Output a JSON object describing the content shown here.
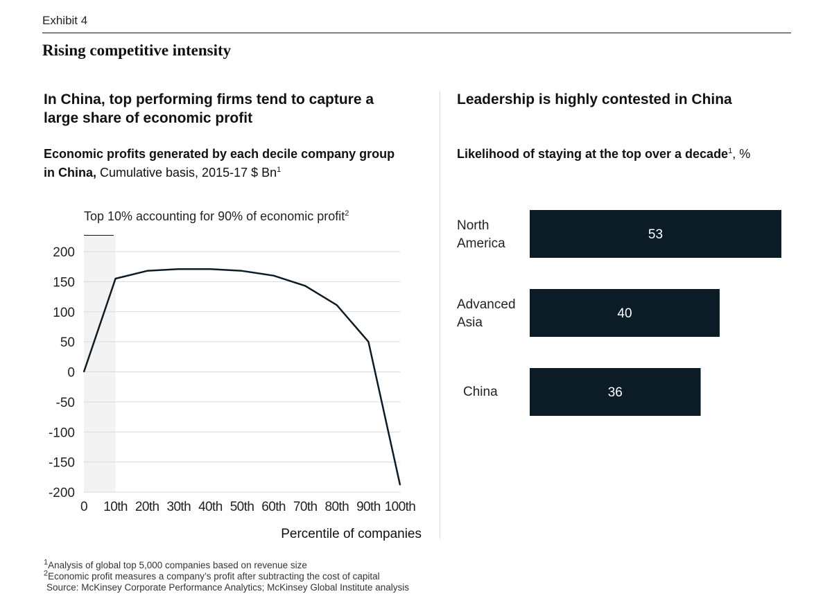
{
  "header": {
    "exhibit": "Exhibit 4",
    "title": "Rising competitive intensity"
  },
  "left_panel": {
    "title": "In China, top performing firms tend to capture a large share of economic profit",
    "subtitle_bold": "Economic profits generated by each decile company group in China,",
    "subtitle_normal": " Cumulative basis, 2015-17 $ Bn",
    "subtitle_sup": "1",
    "annotation": "Top 10% accounting for 90% of economic profit",
    "annotation_sup": "2"
  },
  "right_panel": {
    "title": "Leadership is highly contested in China",
    "subtitle_bold": "Likelihood of staying at the top over a decade",
    "subtitle_sup": "1",
    "subtitle_normal": ", %"
  },
  "chart_data": [
    {
      "type": "line",
      "title": "Economic profits generated by each decile company group in China",
      "x": [
        "0",
        "10th",
        "20th",
        "30th",
        "40th",
        "50th",
        "60th",
        "70th",
        "80th",
        "90th",
        "100th"
      ],
      "series": [
        {
          "values": [
            0,
            155,
            168,
            171,
            171,
            168,
            160,
            143,
            111,
            50,
            -188
          ]
        }
      ],
      "yticks": [
        "200",
        "150",
        "100",
        "50",
        "0",
        "-50",
        "-100",
        "-150",
        "-200"
      ],
      "ylim": [
        -200,
        200
      ],
      "xlabel": "Percentile of companies",
      "ylabel": "",
      "grid": true,
      "highlight_band": [
        "0",
        "10th"
      ],
      "line_color": "#0d1b26",
      "band_color": "#f3f3f3"
    },
    {
      "type": "bar",
      "orientation": "horizontal",
      "title": "Likelihood of staying at the top over a decade",
      "categories": [
        "North America",
        "Advanced Asia",
        "China"
      ],
      "category_lines": [
        [
          "North",
          "America"
        ],
        [
          "Advanced",
          "Asia"
        ],
        [
          "China"
        ]
      ],
      "values": [
        53,
        40,
        36
      ],
      "value_labels": [
        "53",
        "40",
        "36"
      ],
      "bar_color": "#0b1c27",
      "label_color": "#ffffff"
    }
  ],
  "footnotes": {
    "note1_sup": "1",
    "note1": "Analysis of global top 5,000 companies based on revenue size",
    "note2_sup": "2",
    "note2": "Economic profit measures a company’s profit after subtracting the cost of capital",
    "source": "Source: McKinsey Corporate Performance Analytics; McKinsey Global Institute analysis"
  }
}
